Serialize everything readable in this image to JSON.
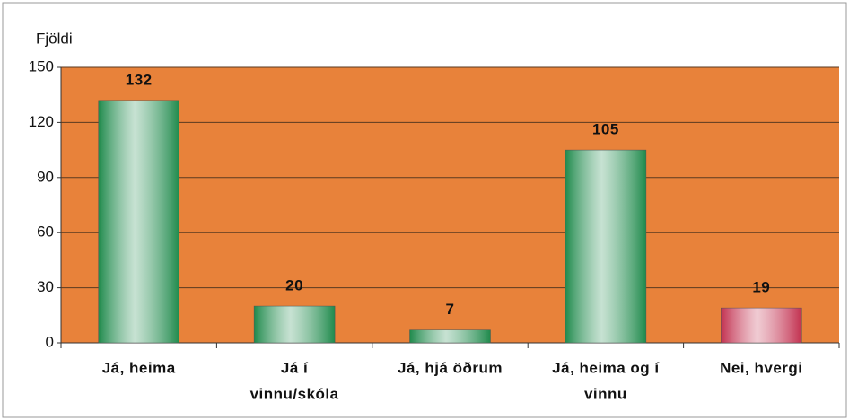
{
  "chart_data": {
    "type": "bar",
    "ylabel": "Fjöldi",
    "categories": [
      [
        "Já, heima"
      ],
      [
        "Já í",
        "vinnu/skóla"
      ],
      [
        "Já, hjá öðrum"
      ],
      [
        "Já, heima og í",
        "vinnu"
      ],
      [
        "Nei, hvergi"
      ]
    ],
    "values": [
      132,
      20,
      7,
      105,
      19
    ],
    "colors": [
      "#1f8a4c",
      "#1f8a4c",
      "#1f8a4c",
      "#1f8a4c",
      "#c2304f"
    ],
    "plot_color": "#e8823a",
    "ylim": [
      0,
      150
    ],
    "yticks": [
      0,
      30,
      60,
      90,
      120,
      150
    ],
    "grid": true
  }
}
